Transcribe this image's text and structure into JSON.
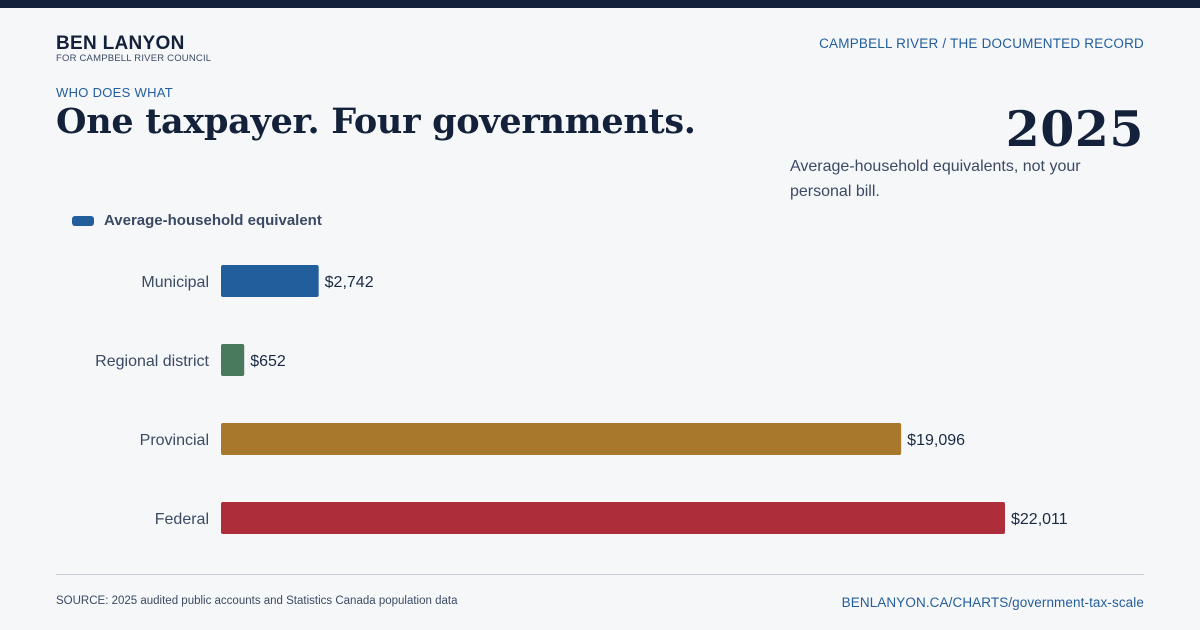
{
  "brand": {
    "name": "BEN LANYON",
    "subtitle": "FOR CAMPBELL RIVER COUNCIL"
  },
  "header": {
    "right_text": "CAMPBELL RIVER / THE DOCUMENTED RECORD"
  },
  "eyebrow": "WHO DOES WHAT",
  "headline": "One taxpayer. Four governments.",
  "year": "2025",
  "note": "Average-household equivalents, not your personal bill.",
  "colors": {
    "municipal": "#235e9c",
    "regional": "#4a7a5e",
    "provincial": "#a8782c",
    "federal": "#ad2d3a",
    "accent": "#235e9c",
    "ink": "#14213a"
  },
  "chart_data": {
    "type": "bar",
    "orientation": "horizontal",
    "title": "One taxpayer. Four governments.",
    "legend": {
      "entries": [
        "Average-household equivalent"
      ],
      "placement": "top-left"
    },
    "categories": [
      "Municipal",
      "Regional district",
      "Provincial",
      "Federal"
    ],
    "series": [
      {
        "name": "Average-household equivalent",
        "values": [
          2742,
          652,
          19096,
          22011
        ],
        "data_labels": [
          "$2,742",
          "$652",
          "$19,096",
          "$22,011"
        ],
        "colors": [
          "#235e9c",
          "#4a7a5e",
          "#a8782c",
          "#ad2d3a"
        ]
      }
    ],
    "xlim": [
      0,
      22011
    ],
    "grid": false,
    "xlabel": "",
    "ylabel": ""
  },
  "footer": {
    "source": "SOURCE: 2025 audited public accounts and Statistics Canada population data",
    "url": "BENLANYON.CA/CHARTS/government-tax-scale"
  }
}
